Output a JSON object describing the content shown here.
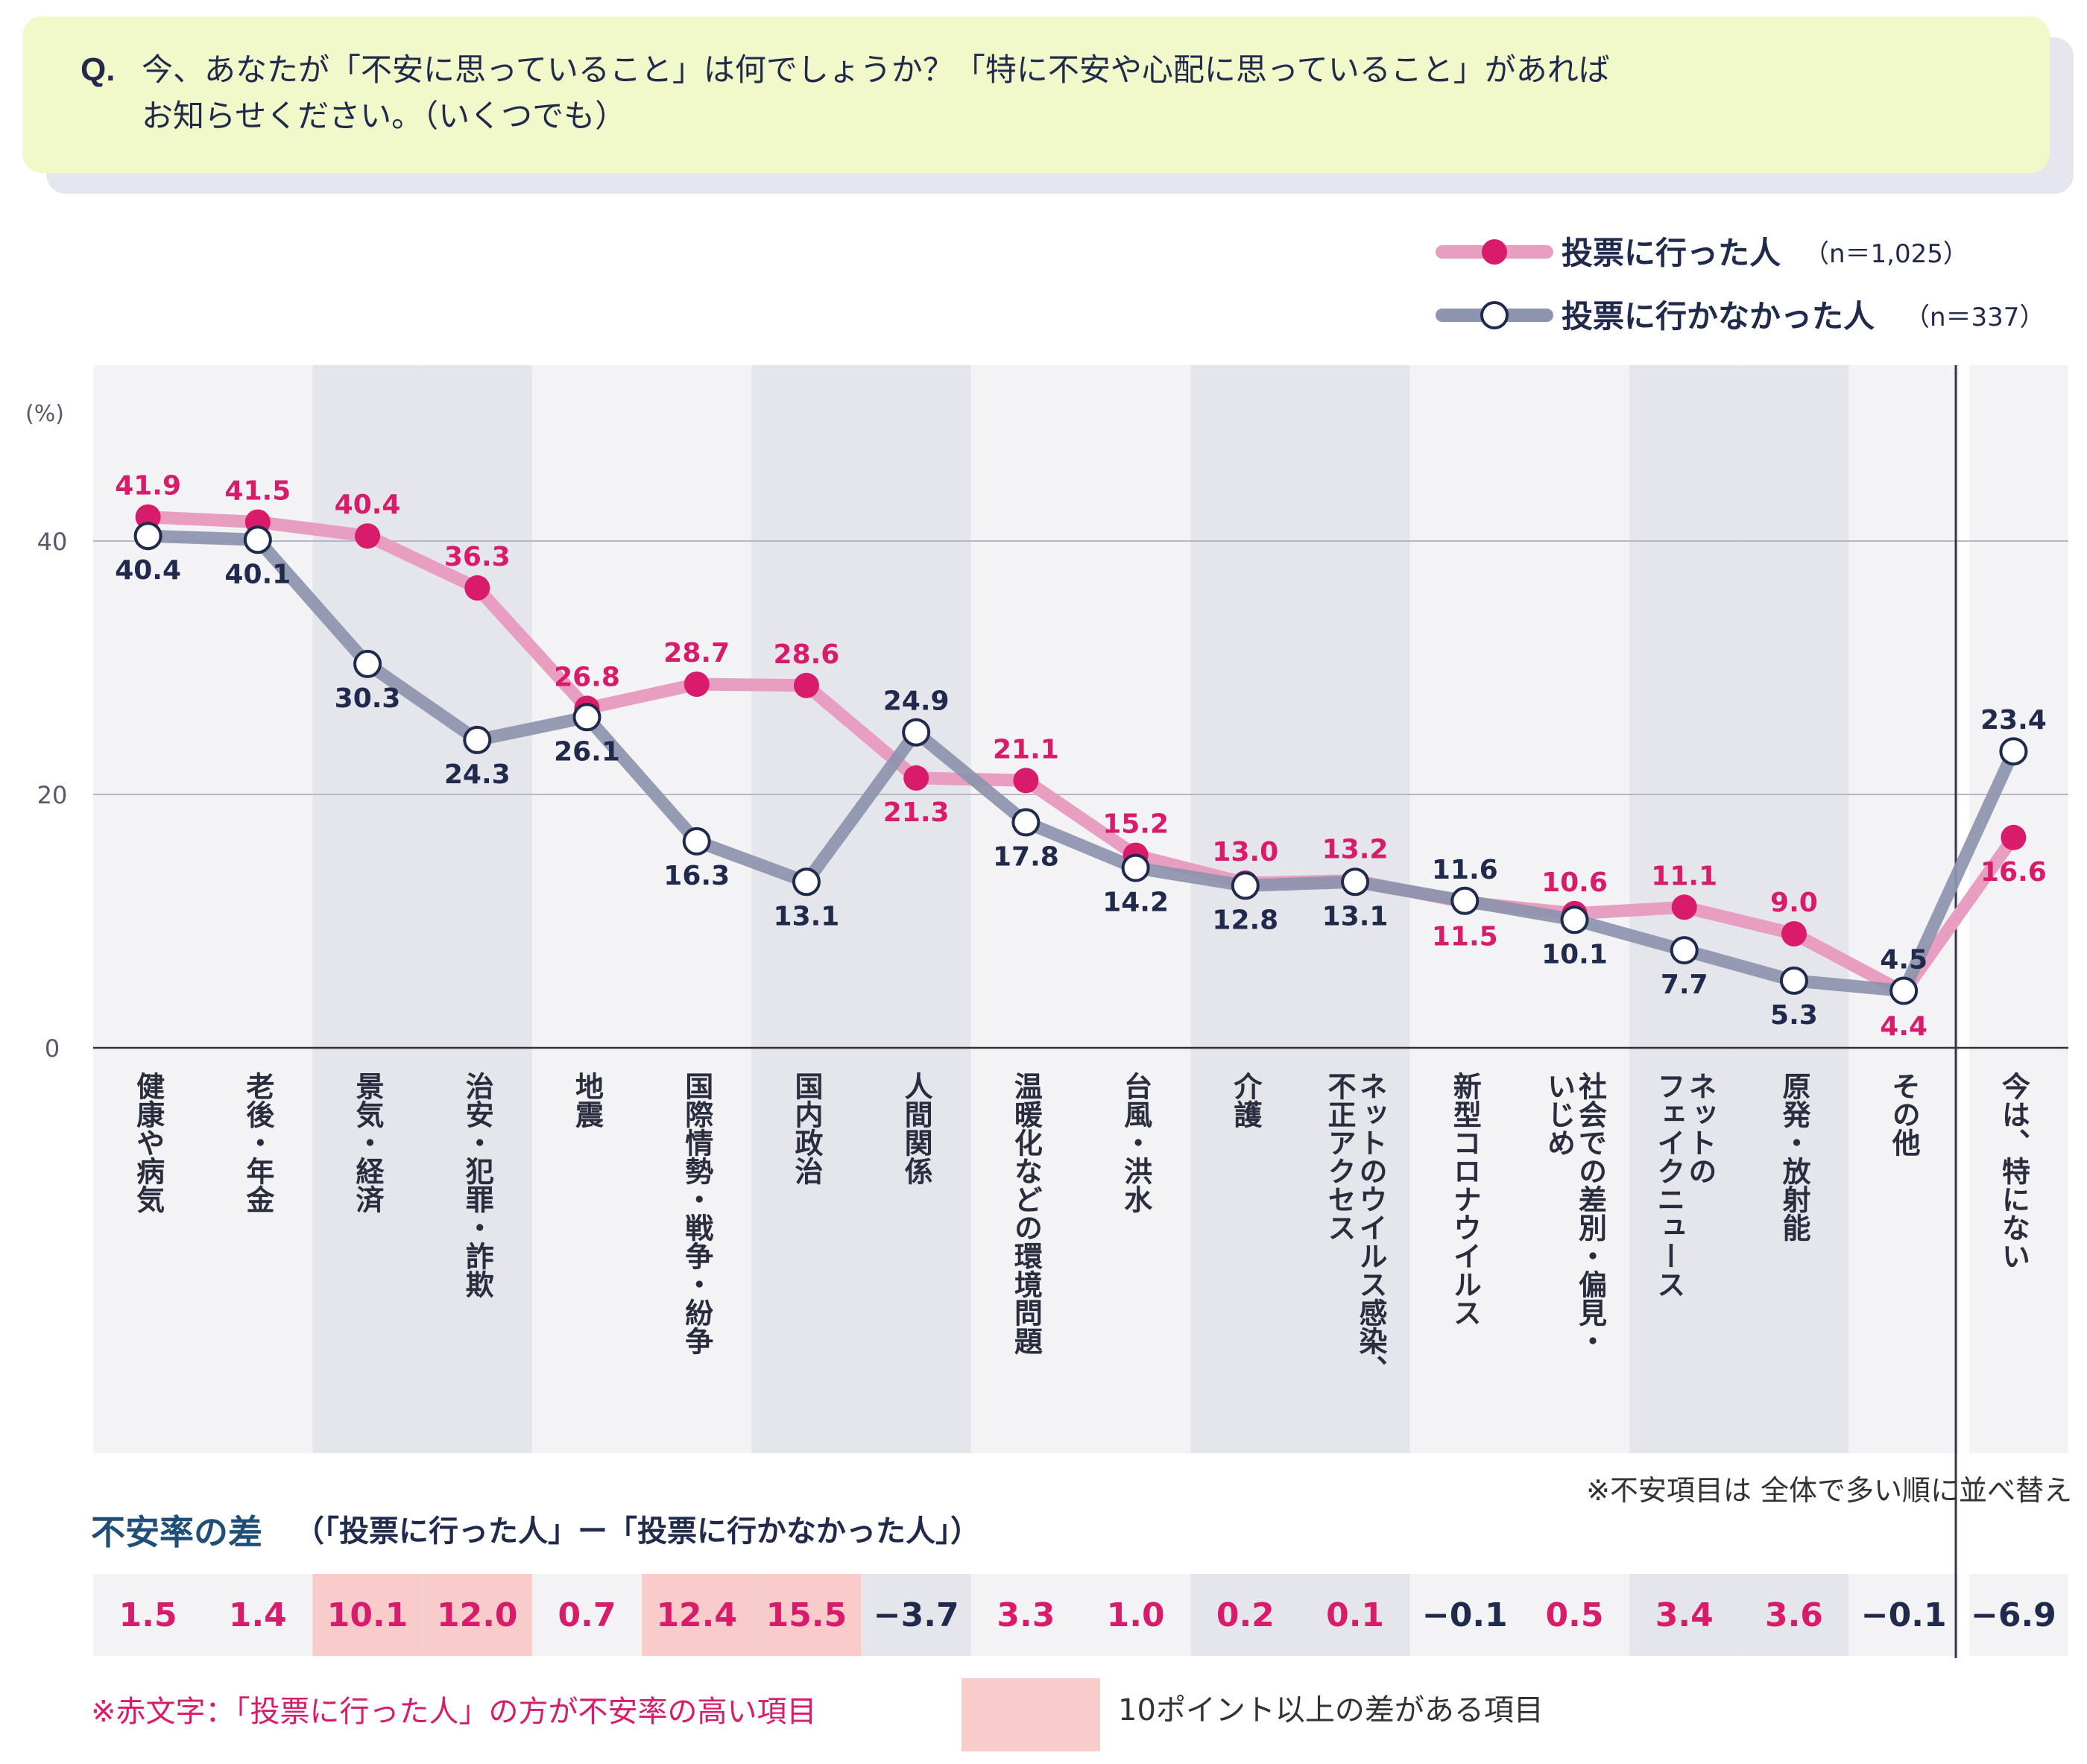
{
  "question": {
    "prefix": "Q.",
    "line1": "今、あなたが「不安に思っていること」は何でしょうか？「特に不安や心配に思っていること」があれば",
    "line2": "お知らせください。（いくつでも）"
  },
  "legend": {
    "voted_label": "投票に行った人",
    "voted_n": "（n＝1,025）",
    "not_voted_label": "投票に行かなかった人",
    "not_voted_n": "（n＝337）"
  },
  "colors": {
    "voted_line": "#e79ec1",
    "voted_marker": "#d81b6b",
    "voted_text": "#d81b6b",
    "not_voted_line": "#8d94ad",
    "not_voted_marker": "#ffffff",
    "not_voted_stroke": "#1f2a4d",
    "not_voted_text": "#1f2a4d",
    "band_dark": "#e5e5ec",
    "band_light": "#f3f3f6",
    "highlight": "#f9cccc"
  },
  "chart_data": {
    "type": "line",
    "title": "Q. 今、あなたが「不安に思っていること」は何でしょうか？",
    "unit_label": "(%)",
    "ylim": [
      0,
      50
    ],
    "yticks": [
      "0",
      "20",
      "40"
    ],
    "ytick_values": [
      0,
      20,
      40
    ],
    "categories": [
      "健康や病気",
      "老後・年金",
      "景気・経済",
      "治安・犯罪・詐欺",
      "地震",
      "国際情勢・戦争・紛争",
      "国内政治",
      "人間関係",
      "温暖化などの環境問題",
      "台風・洪水",
      "介護",
      "ネットのウイルス感染、不正アクセス",
      "新型コロナウイルス",
      "社会での差別・偏見・いじめ",
      "ネットのフェイクニュース",
      "原発・放射能",
      "その他",
      "今は、特にない"
    ],
    "category_lines": [
      [
        "健康や病気"
      ],
      [
        "老後・年金"
      ],
      [
        "景気・経済"
      ],
      [
        "治安・犯罪・詐欺"
      ],
      [
        "地震"
      ],
      [
        "国際情勢・戦争・紛争"
      ],
      [
        "国内政治"
      ],
      [
        "人間関係"
      ],
      [
        "温暖化などの環境問題"
      ],
      [
        "台風・洪水"
      ],
      [
        "介護"
      ],
      [
        "不正アクセス",
        "ネットのウイルス感染、"
      ],
      [
        "新型コロナウイルス"
      ],
      [
        "いじめ",
        "社会での差別・偏見・"
      ],
      [
        "フェイクニュース",
        "ネットの"
      ],
      [
        "原発・放射能"
      ],
      [
        "その他"
      ],
      [
        "今は、特にない"
      ]
    ],
    "series": [
      {
        "name": "投票に行った人",
        "values": [
          41.9,
          41.5,
          40.4,
          36.3,
          26.8,
          28.7,
          28.6,
          21.3,
          21.1,
          15.2,
          13.0,
          13.2,
          11.5,
          10.6,
          11.1,
          9.0,
          4.4,
          16.6
        ],
        "labels": [
          "41.9",
          "41.5",
          "40.4",
          "36.3",
          "26.8",
          "28.7",
          "28.6",
          "21.3",
          "21.1",
          "15.2",
          "13.0",
          "13.2",
          "11.5",
          "10.6",
          "11.1",
          "9.0",
          "4.4",
          "16.6"
        ]
      },
      {
        "name": "投票に行かなかった人",
        "values": [
          40.4,
          40.1,
          30.3,
          24.3,
          26.1,
          16.3,
          13.1,
          24.9,
          17.8,
          14.2,
          12.8,
          13.1,
          11.6,
          10.1,
          7.7,
          5.3,
          4.5,
          23.4
        ],
        "labels": [
          "40.4",
          "40.1",
          "30.3",
          "24.3",
          "26.1",
          "16.3",
          "13.1",
          "24.9",
          "17.8",
          "14.2",
          "12.8",
          "13.1",
          "11.6",
          "10.1",
          "7.7",
          "5.3",
          "4.5",
          "23.4"
        ]
      }
    ],
    "note_sort": "※不安項目は 全体で多い順に並べ替え"
  },
  "diff": {
    "title": "不安率の差",
    "subtitle": "（「投票に行った人」ー「投票に行かなかった人」）",
    "values": [
      "1.5",
      "1.4",
      "10.1",
      "12.0",
      "0.7",
      "12.4",
      "15.5",
      "−3.7",
      "3.3",
      "1.0",
      "0.2",
      "0.1",
      "−0.1",
      "0.5",
      "3.4",
      "3.6",
      "−0.1",
      "−6.9"
    ],
    "numbers": [
      1.5,
      1.4,
      10.1,
      12.0,
      0.7,
      12.4,
      15.5,
      -3.7,
      3.3,
      1.0,
      0.2,
      0.1,
      -0.1,
      0.5,
      3.4,
      3.6,
      -0.1,
      -6.9
    ]
  },
  "footer": {
    "red_note": "※赤文字：「投票に行った人」の方が不安率の高い項目",
    "highlight_note": "10ポイント以上の差がある項目"
  }
}
